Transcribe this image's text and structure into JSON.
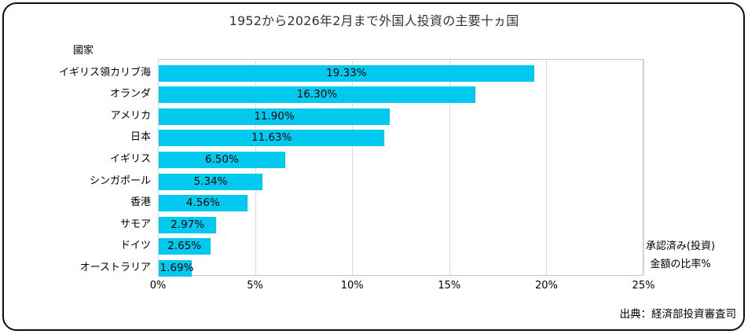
{
  "title": "1952から2026年2月まで外国人投資の主要十ヵ国",
  "axis_title": "國家",
  "annotation": {
    "line1": "承認済み(投資)",
    "line2": "金額の比率%"
  },
  "source": "出典：経済部投資審査司",
  "colors": {
    "bar": "#00c9f0",
    "gridline": "#d9d9d9",
    "plot_border": "#c9c9c9",
    "text": "#000000",
    "frame_border": "#0d0d0d"
  },
  "chart_data": {
    "type": "bar",
    "orientation": "horizontal",
    "title": "1952から2026年2月まで外国人投資の主要十ヵ国",
    "categories": [
      "イギリス領カリブ海",
      "オランダ",
      "アメリカ",
      "日本",
      "イギリス",
      "シンガポール",
      "香港",
      "サモア",
      "ドイツ",
      "オーストラリア"
    ],
    "values": [
      19.33,
      16.3,
      11.9,
      11.63,
      6.5,
      5.34,
      4.56,
      2.97,
      2.65,
      1.69
    ],
    "data_labels": [
      "19.33%",
      "16.30%",
      "11.90%",
      "11.63%",
      "6.50%",
      "5.34%",
      "4.56%",
      "2.97%",
      "2.65%",
      "1.69%"
    ],
    "x_ticks": [
      "0%",
      "5%",
      "10%",
      "15%",
      "20%",
      "25%"
    ],
    "x_tick_values": [
      0,
      5,
      10,
      15,
      20,
      25
    ],
    "xlim": [
      0,
      25
    ],
    "ylabel": "國家",
    "grid": true,
    "legend": false,
    "bar_label_position": "center"
  }
}
